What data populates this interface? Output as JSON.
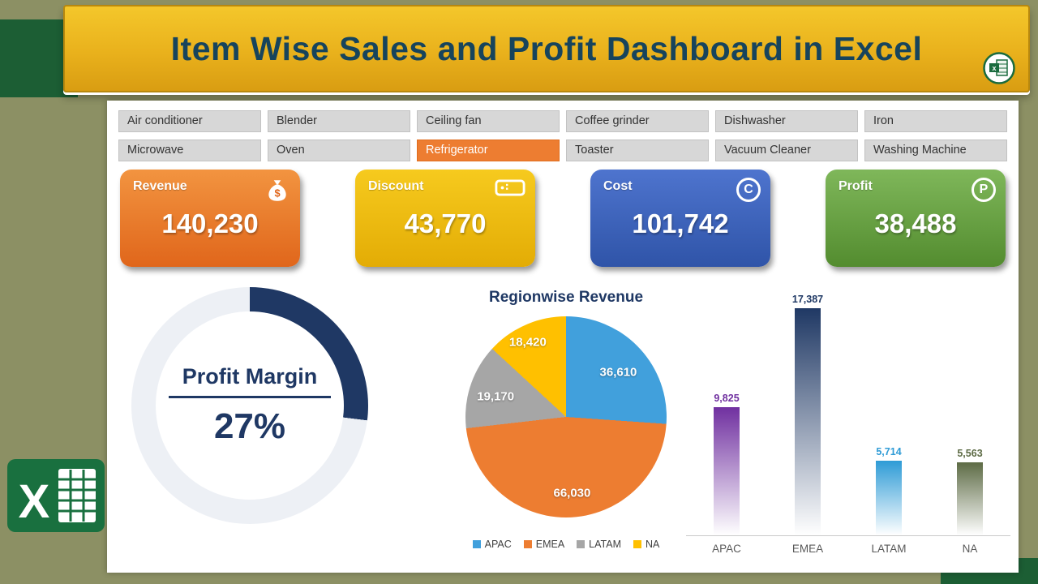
{
  "banner": {
    "title": "Item Wise Sales and Profit Dashboard in Excel"
  },
  "slicers": {
    "items": [
      "Air conditioner",
      "Blender",
      "Ceiling fan",
      "Coffee grinder",
      "Dishwasher",
      "Iron",
      "Microwave",
      "Oven",
      "Refrigerator",
      "Toaster",
      "Vacuum Cleaner",
      "Washing Machine"
    ],
    "selected": "Refrigerator"
  },
  "kpis": [
    {
      "label": "Revenue",
      "value": "140,230",
      "icon": "money-bag-icon",
      "color_top": "#F29440",
      "color_bottom": "#E0661B"
    },
    {
      "label": "Discount",
      "value": "43,770",
      "icon": "coupon-icon",
      "color_top": "#F6CA1E",
      "color_bottom": "#E3AC05"
    },
    {
      "label": "Cost",
      "value": "101,742",
      "icon": "circle-c-icon",
      "icon_letter": "C",
      "color_top": "#4E74CE",
      "color_bottom": "#2F54A8"
    },
    {
      "label": "Profit",
      "value": "38,488",
      "icon": "circle-p-icon",
      "icon_letter": "P",
      "color_top": "#7FB75A",
      "color_bottom": "#538C2F"
    }
  ],
  "chart_data": [
    {
      "type": "donut",
      "title": "Profit Margin",
      "value_pct": 27,
      "value_label": "27%",
      "color": "#1F3864",
      "track_color": "#EDF0F5"
    },
    {
      "type": "pie",
      "title": "Regionwise Revenue",
      "categories": [
        "APAC",
        "EMEA",
        "LATAM",
        "NA"
      ],
      "values": [
        36610,
        66030,
        19170,
        18420
      ],
      "value_labels": [
        "36,610",
        "66,030",
        "19,170",
        "18,420"
      ],
      "colors": [
        "#41A0DC",
        "#ED7D31",
        "#A6A6A6",
        "#FFC000"
      ],
      "legend_position": "bottom",
      "total": 140230
    },
    {
      "type": "bar",
      "categories": [
        "APAC",
        "EMEA",
        "LATAM",
        "NA"
      ],
      "values": [
        9825,
        17387,
        5714,
        5563
      ],
      "value_labels": [
        "9,825",
        "17,387",
        "5,714",
        "5,563"
      ],
      "colors": [
        "#7030A0",
        "#1F3864",
        "#2E9BD6",
        "#5D6B45"
      ],
      "fade_to": "#FFFFFF",
      "ylim": [
        0,
        18000
      ]
    }
  ]
}
